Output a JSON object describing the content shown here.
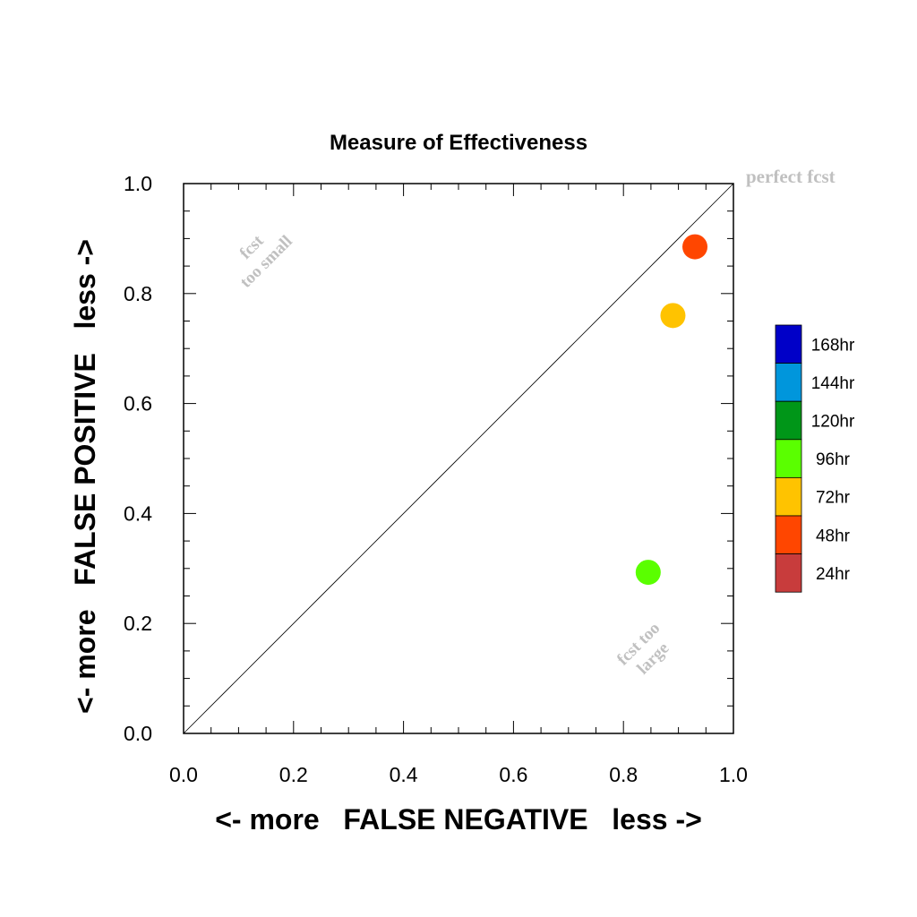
{
  "chart_data": {
    "type": "scatter",
    "title": "Measure of Effectiveness",
    "xlabel": "<- more   FALSE NEGATIVE   less ->",
    "ylabel": "<- more   FALSE POSITIVE   less ->",
    "xlim": [
      0.0,
      1.0
    ],
    "ylim": [
      0.0,
      1.0
    ],
    "xticks": [
      "0.0",
      "0.2",
      "0.4",
      "0.6",
      "0.8",
      "1.0"
    ],
    "yticks": [
      "0.0",
      "0.2",
      "0.4",
      "0.6",
      "0.8",
      "1.0"
    ],
    "grid": false,
    "diagonal_line": true,
    "annotations": {
      "perfect": "perfect fcst",
      "too_small_line1": "fcst",
      "too_small_line2": "too small",
      "too_large_line1": "fcst too",
      "too_large_line2": "large"
    },
    "legend": {
      "placement": "right",
      "entries": [
        {
          "label": "168hr",
          "color": "#0000c8"
        },
        {
          "label": "144hr",
          "color": "#0096dc"
        },
        {
          "label": "120hr",
          "color": "#009618"
        },
        {
          "label": "96hr",
          "color": "#5aff00"
        },
        {
          "label": "72hr",
          "color": "#ffc300"
        },
        {
          "label": "48hr",
          "color": "#ff4600"
        },
        {
          "label": "24hr",
          "color": "#c83c3c"
        }
      ]
    },
    "points": [
      {
        "lead": "48hr",
        "x": 0.93,
        "y": 0.885,
        "color": "#ff4600"
      },
      {
        "lead": "72hr",
        "x": 0.89,
        "y": 0.76,
        "color": "#ffc300"
      },
      {
        "lead": "96hr",
        "x": 0.845,
        "y": 0.293,
        "color": "#5aff00"
      }
    ]
  }
}
